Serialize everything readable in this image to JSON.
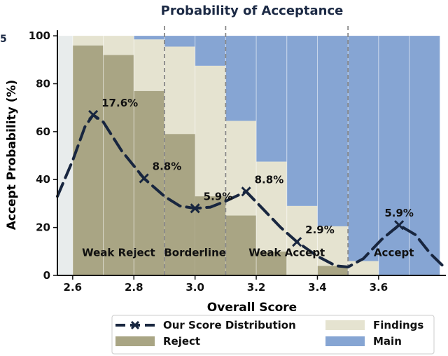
{
  "chart_data": {
    "type": "bar",
    "title": "Probability of Acceptance",
    "xlabel": "Overall Score",
    "ylabel": "Accept Probability (%)",
    "xlim": [
      2.55,
      3.82
    ],
    "ylim": [
      0,
      100
    ],
    "xticks": [
      "2.6",
      "2.8",
      "3.0",
      "3.2",
      "3.4",
      "3.6"
    ],
    "xtick_values": [
      2.6,
      2.8,
      3.0,
      3.2,
      3.4,
      3.6
    ],
    "yticks": [
      "0",
      "20",
      "40",
      "60",
      "80",
      "100"
    ],
    "ytick_values": [
      0,
      20,
      40,
      60,
      80,
      100
    ],
    "bin_width": 0.1,
    "bins": [
      {
        "x0": 2.6,
        "reject": 96,
        "findings": 4,
        "main": 0
      },
      {
        "x0": 2.7,
        "reject": 92,
        "findings": 8,
        "main": 0
      },
      {
        "x0": 2.8,
        "reject": 77,
        "findings": 21.5,
        "main": 1.5
      },
      {
        "x0": 2.9,
        "reject": 0,
        "findings": 95.5,
        "main": 4.5
      },
      {
        "x0": 3.0,
        "reject": 0,
        "findings": 87.5,
        "main": 12.5
      },
      {
        "x0": 3.1,
        "reject": 25,
        "findings": 39.5,
        "main": 35.5
      },
      {
        "x0": 3.2,
        "reject": 10,
        "findings": 37.5,
        "main": 52.5
      },
      {
        "x0": 3.3,
        "reject": 0,
        "findings": 29,
        "main": 71
      },
      {
        "x0": 3.4,
        "reject": 4,
        "findings": 16.5,
        "main": 79.5
      },
      {
        "x0": 3.5,
        "reject": 0,
        "findings": 6,
        "main": 94
      },
      {
        "x0": 3.6,
        "reject": 0,
        "findings": 0,
        "main": 100
      },
      {
        "x0": 3.7,
        "reject": 0,
        "findings": 0,
        "main": 100
      }
    ],
    "reject_fills": [
      {
        "x0": 2.9,
        "top": 59
      },
      {
        "x0": 3.0,
        "top": 33
      }
    ],
    "leftmost_bin": {
      "x0": 2.55,
      "x1": 2.6,
      "value": 35
    },
    "region_dividers": [
      2.9,
      3.1,
      3.5
    ],
    "region_labels": [
      {
        "text": "Weak Reject",
        "x": 2.75,
        "y": 6
      },
      {
        "text": "Borderline",
        "x": 3.0,
        "y": 6
      },
      {
        "text": "Weak Accept",
        "x": 3.3,
        "y": 6
      },
      {
        "text": "Accept",
        "x": 3.65,
        "y": 6
      }
    ],
    "distribution_markers": [
      {
        "x": 2.667,
        "y": 67,
        "label": "17.6%"
      },
      {
        "x": 2.833,
        "y": 40.5,
        "label": "8.8%"
      },
      {
        "x": 3.0,
        "y": 28,
        "label": "5.9%"
      },
      {
        "x": 3.167,
        "y": 35,
        "label": "8.8%"
      },
      {
        "x": 3.333,
        "y": 14,
        "label": "2.9%"
      },
      {
        "x": 3.667,
        "y": 21,
        "label": "5.9%"
      }
    ],
    "distribution_curve": [
      [
        2.55,
        33
      ],
      [
        2.6,
        48
      ],
      [
        2.64,
        62
      ],
      [
        2.667,
        67
      ],
      [
        2.7,
        64
      ],
      [
        2.76,
        52
      ],
      [
        2.833,
        40.5
      ],
      [
        2.9,
        33
      ],
      [
        2.95,
        29
      ],
      [
        3.0,
        28
      ],
      [
        3.05,
        28.5
      ],
      [
        3.1,
        31
      ],
      [
        3.167,
        35
      ],
      [
        3.22,
        28
      ],
      [
        3.28,
        20
      ],
      [
        3.333,
        14
      ],
      [
        3.4,
        8
      ],
      [
        3.46,
        4
      ],
      [
        3.5,
        3.5
      ],
      [
        3.55,
        7
      ],
      [
        3.61,
        15
      ],
      [
        3.667,
        21
      ],
      [
        3.72,
        17
      ],
      [
        3.77,
        9
      ],
      [
        3.81,
        4
      ]
    ],
    "legend": [
      {
        "label": "Our Score Distribution",
        "kind": "line"
      },
      {
        "label": "Findings",
        "kind": "patch"
      },
      {
        "label": "Reject",
        "kind": "patch"
      },
      {
        "label": "Main",
        "kind": "patch"
      }
    ],
    "legend_position": "bottom",
    "grid": false,
    "colors": {
      "reject": "#a9a584",
      "findings": "#e5e3d0",
      "main": "#86a5d3",
      "distribution": "#18263f",
      "first_bin": "#e8ecec",
      "divider": "#8a8a8a"
    }
  },
  "edge_glyph": "5"
}
